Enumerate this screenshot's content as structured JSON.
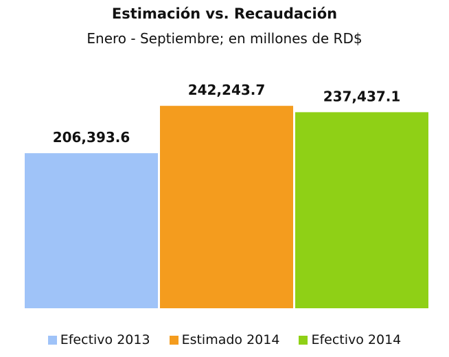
{
  "chart_data": {
    "type": "bar",
    "title": "Estimación vs. Recaudación",
    "subtitle": "Enero - Septiembre; en millones de RD$",
    "categories": [
      "Efectivo 2013",
      "Estimado 2014",
      "Efectivo 2014"
    ],
    "values": [
      206393.6,
      242243.7,
      237437.1
    ],
    "data_labels": [
      "206,393.6",
      "242,243.7",
      "237,437.1"
    ],
    "colors": [
      "#9fc3f8",
      "#f49c1e",
      "#8fd016"
    ],
    "ylim": [
      89000,
      260000
    ],
    "grid": false,
    "legend": "bottom",
    "xlabel": "",
    "ylabel": ""
  }
}
